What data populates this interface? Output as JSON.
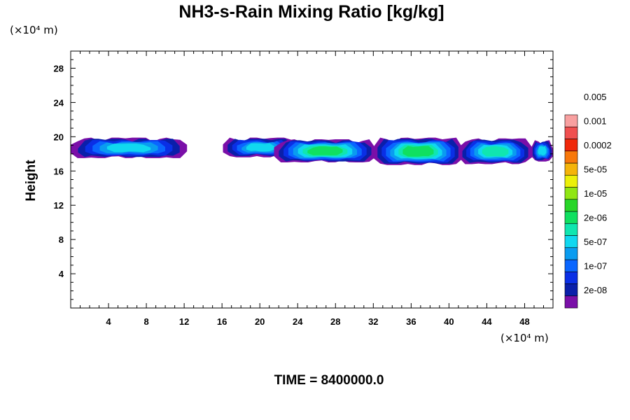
{
  "chart_data": {
    "type": "contour",
    "title": "NH3-s-Rain Mixing Ratio [kg/kg]",
    "xlabel": "",
    "ylabel": "Height",
    "x_unit": "(×10⁴ m)",
    "y_unit": "(×10⁴ m)",
    "xlim": [
      0,
      51
    ],
    "ylim": [
      0,
      30
    ],
    "x_ticks": [
      4,
      8,
      12,
      16,
      20,
      24,
      28,
      32,
      36,
      40,
      44,
      48
    ],
    "y_ticks": [
      4,
      8,
      12,
      16,
      20,
      24,
      28
    ],
    "colorbar": {
      "labels": [
        "2e-08",
        "1e-07",
        "5e-07",
        "2e-06",
        "1e-05",
        "5e-05",
        "0.0002",
        "0.001",
        "0.005"
      ],
      "colors": [
        "#7a0fa8",
        "#0a1faa",
        "#0a2fe6",
        "#0a66ff",
        "#0a9cf0",
        "#10d8f0",
        "#10e6b0",
        "#10e060",
        "#28d628",
        "#90e614",
        "#ecf00a",
        "#f4b40a",
        "#f8780a",
        "#f0280a",
        "#f05050",
        "#f8a0a0"
      ]
    },
    "regions": [
      {
        "x": [
          0,
          12.3
        ],
        "y": [
          17.5,
          19.9
        ],
        "peak_level": 5
      },
      {
        "x": [
          16.1,
          24.0
        ],
        "y": [
          17.6,
          19.9
        ],
        "peak_level": 5
      },
      {
        "x": [
          21.5,
          32.3
        ],
        "y": [
          17.0,
          19.7
        ],
        "peak_level": 7
      },
      {
        "x": [
          32.0,
          41.5
        ],
        "y": [
          16.7,
          19.9
        ],
        "peak_level": 7
      },
      {
        "x": [
          41.0,
          48.8
        ],
        "y": [
          16.8,
          19.8
        ],
        "peak_level": 6
      },
      {
        "x": [
          48.7,
          51.0
        ],
        "y": [
          17.1,
          19.6
        ],
        "peak_level": 5
      }
    ],
    "annotation": "TIME = 8400000.0"
  }
}
